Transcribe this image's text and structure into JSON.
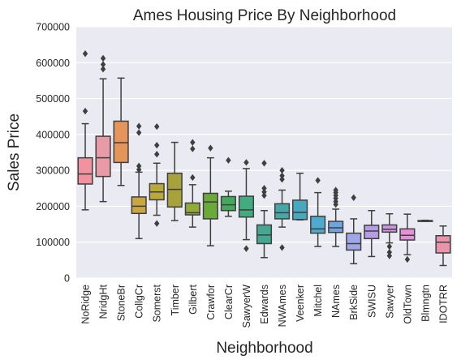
{
  "chart_data": {
    "type": "box",
    "title": "Ames Housing Price By Neighborhood",
    "xlabel": "Neighborhood",
    "ylabel": "Sales Price",
    "ylim": [
      0,
      700000
    ],
    "yticks": [
      0,
      100000,
      200000,
      300000,
      400000,
      500000,
      600000,
      700000
    ],
    "ytick_labels": [
      "0",
      "100000",
      "200000",
      "300000",
      "400000",
      "500000",
      "600000",
      "700000"
    ],
    "grid": true,
    "background": "#eaeaf2",
    "categories": [
      "NoRidge",
      "NridgHt",
      "StoneBr",
      "CollgCr",
      "Somerst",
      "Timber",
      "Gilbert",
      "Crawfor",
      "ClearCr",
      "SawyerW",
      "Edwards",
      "NWAmes",
      "Veenker",
      "Mitchel",
      "NAmes",
      "BrkSide",
      "SWISU",
      "Sawyer",
      "OldTown",
      "Blmngtn",
      "IDOTRR"
    ],
    "colors": [
      "#f2929e",
      "#e89aa6",
      "#e6955a",
      "#c9a640",
      "#b8a939",
      "#a8a23a",
      "#93ab39",
      "#6aaa3a",
      "#45a95c",
      "#42ab7f",
      "#44a792",
      "#45a7a8",
      "#48a8bd",
      "#4eaacf",
      "#6fa4de",
      "#9fa7e6",
      "#b69ee4",
      "#cf95e0",
      "#e590d7",
      "#e895c0",
      "#ea94ab"
    ],
    "boxes": [
      {
        "min": 190000,
        "q1": 262000,
        "median": 290000,
        "q3": 335000,
        "max": 430000,
        "fliers": [
          625000,
          465000
        ]
      },
      {
        "min": 213000,
        "q1": 283000,
        "median": 335000,
        "q3": 395000,
        "max": 555000,
        "fliers": [
          612000,
          595000,
          582000
        ]
      },
      {
        "min": 258000,
        "q1": 322000,
        "median": 377000,
        "q3": 437000,
        "max": 557000,
        "fliers": []
      },
      {
        "min": 110000,
        "q1": 180000,
        "median": 200000,
        "q3": 226000,
        "max": 295000,
        "fliers": [
          423000,
          405000,
          312000,
          302000
        ]
      },
      {
        "min": 175000,
        "q1": 218000,
        "median": 240000,
        "q3": 263000,
        "max": 320000,
        "fliers": [
          422000,
          370000,
          345000,
          152000
        ]
      },
      {
        "min": 160000,
        "q1": 198000,
        "median": 247000,
        "q3": 292000,
        "max": 378000,
        "fliers": []
      },
      {
        "min": 142000,
        "q1": 176000,
        "median": 182000,
        "q3": 209000,
        "max": 260000,
        "fliers": [
          378000,
          360000,
          280000
        ]
      },
      {
        "min": 90000,
        "q1": 165000,
        "median": 212000,
        "q3": 236000,
        "max": 335000,
        "fliers": [
          362000
        ]
      },
      {
        "min": 172000,
        "q1": 188000,
        "median": 204000,
        "q3": 227000,
        "max": 242000,
        "fliers": [
          328000
        ]
      },
      {
        "min": 107000,
        "q1": 170000,
        "median": 190000,
        "q3": 228000,
        "max": 305000,
        "fliers": [
          322000,
          82000
        ]
      },
      {
        "min": 57000,
        "q1": 96000,
        "median": 120000,
        "q3": 148000,
        "max": 188000,
        "fliers": [
          320000,
          250000,
          240000,
          230000
        ]
      },
      {
        "min": 142000,
        "q1": 165000,
        "median": 182000,
        "q3": 207000,
        "max": 245000,
        "fliers": [
          300000,
          285000,
          275000,
          85000
        ]
      },
      {
        "min": 162000,
        "q1": 163000,
        "median": 183000,
        "q3": 217000,
        "max": 292000,
        "fliers": []
      },
      {
        "min": 88000,
        "q1": 125000,
        "median": 137000,
        "q3": 172000,
        "max": 238000,
        "fliers": [
          272000
        ]
      },
      {
        "min": 88000,
        "q1": 127000,
        "median": 140000,
        "q3": 158000,
        "max": 192000,
        "fliers": [
          245000,
          238000,
          230000,
          222000,
          213000,
          205000
        ]
      },
      {
        "min": 40000,
        "q1": 78000,
        "median": 96000,
        "q3": 125000,
        "max": 165000,
        "fliers": [
          224000
        ]
      },
      {
        "min": 60000,
        "q1": 110000,
        "median": 131000,
        "q3": 147000,
        "max": 188000,
        "fliers": []
      },
      {
        "min": 98000,
        "q1": 128000,
        "median": 136000,
        "q3": 148000,
        "max": 179000,
        "fliers": [
          88000,
          72000,
          62000
        ]
      },
      {
        "min": 65000,
        "q1": 106000,
        "median": 119000,
        "q3": 137000,
        "max": 178000,
        "fliers": [
          52000
        ]
      },
      {
        "min": 158000,
        "q1": 159000,
        "median": 160000,
        "q3": 160000,
        "max": 161000,
        "fliers": []
      },
      {
        "min": 35000,
        "q1": 70000,
        "median": 100000,
        "q3": 118000,
        "max": 145000,
        "fliers": []
      }
    ]
  }
}
